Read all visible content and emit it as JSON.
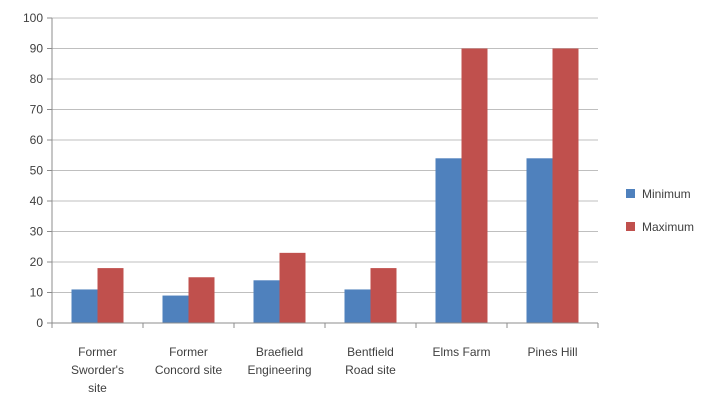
{
  "chart_data": {
    "type": "bar",
    "categories": [
      [
        "Former",
        "Sworder's",
        "site"
      ],
      [
        "Former",
        "Concord site"
      ],
      [
        "Braefield",
        "Engineering"
      ],
      [
        "Bentfield",
        "Road site"
      ],
      [
        "Elms Farm"
      ],
      [
        "Pines Hill"
      ]
    ],
    "series": [
      {
        "name": "Minimum",
        "color": "#4f81bd",
        "values": [
          11,
          9,
          14,
          11,
          54,
          54
        ]
      },
      {
        "name": "Maximum",
        "color": "#c0504d",
        "values": [
          18,
          15,
          23,
          18,
          90,
          90
        ]
      }
    ],
    "ylim": [
      0,
      100
    ],
    "yticks": [
      0,
      10,
      20,
      30,
      40,
      50,
      60,
      70,
      80,
      90,
      100
    ],
    "grid": true,
    "legend_position": "right",
    "title": "",
    "xlabel": "",
    "ylabel": ""
  }
}
